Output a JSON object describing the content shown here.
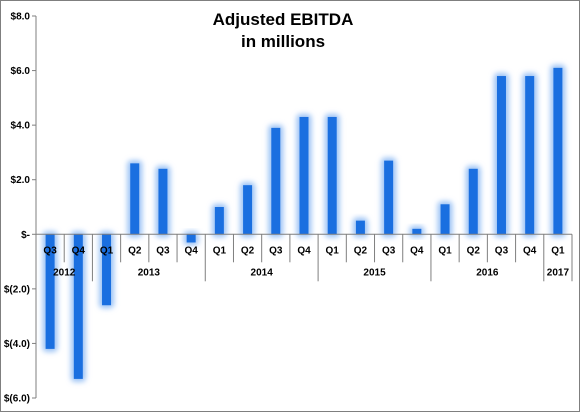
{
  "chart_data": {
    "type": "bar",
    "title": "Adjusted EBITDA",
    "subtitle": "in millions",
    "ylim": [
      -6,
      8
    ],
    "yticks": [
      {
        "value": 8,
        "label": "$8.0"
      },
      {
        "value": 6,
        "label": "$6.0"
      },
      {
        "value": 4,
        "label": "$4.0"
      },
      {
        "value": 2,
        "label": "$2.0"
      },
      {
        "value": 0,
        "label": "$-"
      },
      {
        "value": -2,
        "label": "$(2.0)"
      },
      {
        "value": -4,
        "label": "$(4.0)"
      },
      {
        "value": -6,
        "label": "$(6.0)"
      }
    ],
    "categories": [
      "Q3",
      "Q4",
      "Q1",
      "Q2",
      "Q3",
      "Q4",
      "Q1",
      "Q2",
      "Q3",
      "Q4",
      "Q1",
      "Q2",
      "Q3",
      "Q4",
      "Q1",
      "Q2",
      "Q3",
      "Q4",
      "Q1"
    ],
    "values": [
      -4.2,
      -5.3,
      -2.6,
      2.6,
      2.4,
      -0.3,
      1.0,
      1.8,
      3.9,
      4.3,
      4.3,
      0.5,
      2.7,
      0.2,
      1.1,
      2.4,
      5.8,
      5.8,
      6.1
    ],
    "year_groups": [
      {
        "label": "2012",
        "start": 0,
        "end": 1
      },
      {
        "label": "2013",
        "start": 2,
        "end": 5
      },
      {
        "label": "2014",
        "start": 6,
        "end": 9
      },
      {
        "label": "2015",
        "start": 10,
        "end": 13
      },
      {
        "label": "2016",
        "start": 14,
        "end": 17
      },
      {
        "label": "2017",
        "start": 18,
        "end": 18
      }
    ],
    "grid": false,
    "bar_color": "#1a6fe0",
    "glow_color": "#9cc3f5"
  }
}
